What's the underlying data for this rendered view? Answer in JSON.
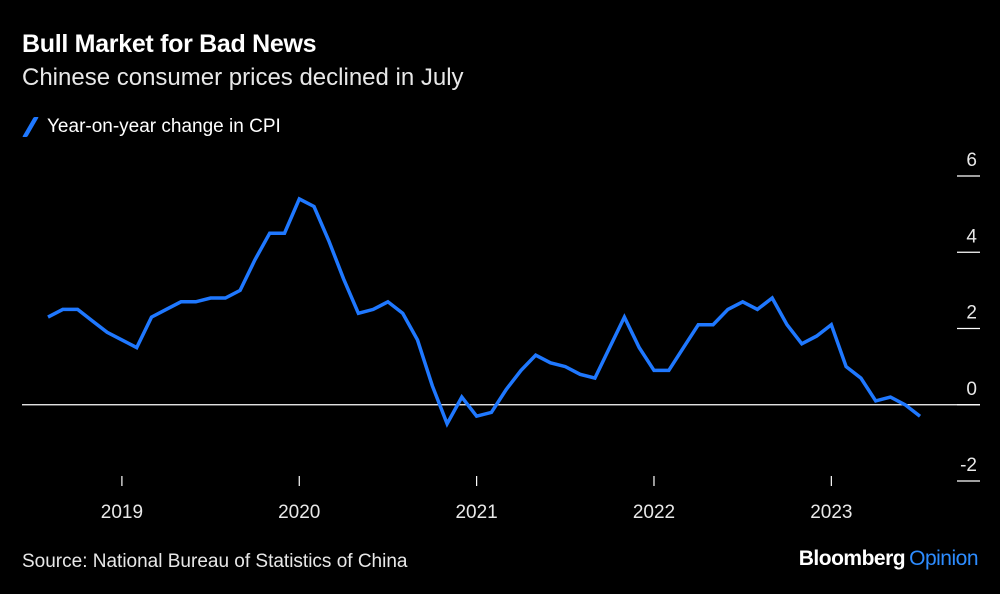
{
  "title": "Bull Market for Bad News",
  "subtitle": "Chinese consumer prices declined in July",
  "legend": {
    "label": "Year-on-year change in CPI"
  },
  "source": "Source: National Bureau of Statistics of China",
  "brand": {
    "name": "Bloomberg",
    "suffix": "Opinion"
  },
  "colors": {
    "background": "#000000",
    "line": "#1f78ff",
    "brand_accent": "#2d8cff"
  },
  "chart_data": {
    "type": "line",
    "title": "Bull Market for Bad News",
    "subtitle": "Chinese consumer prices declined in July",
    "xlabel": "",
    "ylabel": "",
    "ylim": [
      -2,
      6
    ],
    "y_ticks": [
      "6",
      "4",
      "2",
      "0",
      "-2"
    ],
    "x_ticks": [
      "2019",
      "2020",
      "2021",
      "2022",
      "2023"
    ],
    "grid": false,
    "legend_position": "top-left",
    "zero_line": true,
    "series": [
      {
        "name": "Year-on-year change in CPI",
        "x": [
          "2018-08",
          "2018-09",
          "2018-10",
          "2018-11",
          "2018-12",
          "2019-01",
          "2019-02",
          "2019-03",
          "2019-04",
          "2019-05",
          "2019-06",
          "2019-07",
          "2019-08",
          "2019-09",
          "2019-10",
          "2019-11",
          "2019-12",
          "2020-01",
          "2020-02",
          "2020-03",
          "2020-04",
          "2020-05",
          "2020-06",
          "2020-07",
          "2020-08",
          "2020-09",
          "2020-10",
          "2020-11",
          "2020-12",
          "2021-01",
          "2021-02",
          "2021-03",
          "2021-04",
          "2021-05",
          "2021-06",
          "2021-07",
          "2021-08",
          "2021-09",
          "2021-10",
          "2021-11",
          "2021-12",
          "2022-01",
          "2022-02",
          "2022-03",
          "2022-04",
          "2022-05",
          "2022-06",
          "2022-07",
          "2022-08",
          "2022-09",
          "2022-10",
          "2022-11",
          "2022-12",
          "2023-01",
          "2023-02",
          "2023-03",
          "2023-04",
          "2023-05",
          "2023-06",
          "2023-07"
        ],
        "values": [
          2.3,
          2.5,
          2.5,
          2.2,
          1.9,
          1.7,
          1.5,
          2.3,
          2.5,
          2.7,
          2.7,
          2.8,
          2.8,
          3.0,
          3.8,
          4.5,
          4.5,
          5.4,
          5.2,
          4.3,
          3.3,
          2.4,
          2.5,
          2.7,
          2.4,
          1.7,
          0.5,
          -0.5,
          0.2,
          -0.3,
          -0.2,
          0.4,
          0.9,
          1.3,
          1.1,
          1.0,
          0.8,
          0.7,
          1.5,
          2.3,
          1.5,
          0.9,
          0.9,
          1.5,
          2.1,
          2.1,
          2.5,
          2.7,
          2.5,
          2.8,
          2.1,
          1.6,
          1.8,
          2.1,
          1.0,
          0.7,
          0.1,
          0.2,
          0.0,
          -0.3
        ]
      }
    ]
  }
}
